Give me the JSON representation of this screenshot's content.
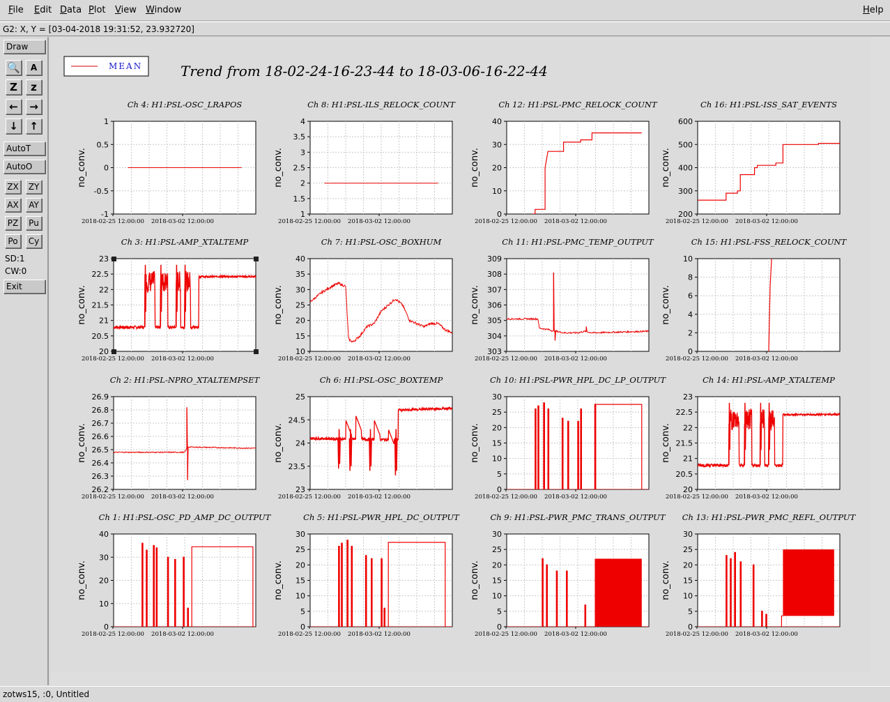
{
  "menu": {
    "items": [
      "File",
      "Edit",
      "Data",
      "Plot",
      "View",
      "Window"
    ],
    "help": "Help"
  },
  "coord_readout": "G2: X, Y = [03-04-2018 19:31:52, 23.932720]",
  "toolbar": {
    "draw": "Draw",
    "autot": "AutoT",
    "autoo": "AutoO",
    "small_buttons": [
      "ZX",
      "ZY",
      "AX",
      "AY",
      "PZ",
      "Pu",
      "Po",
      "Cy"
    ],
    "sd": "SD:1",
    "cw": "CW:0",
    "exit": "Exit",
    "icons": [
      "magnifier-icon",
      "text-tool-icon",
      "zoom-z-icon",
      "zoom-z-small-icon",
      "arrow-left-icon",
      "arrow-right-icon",
      "arrow-down-icon",
      "arrow-up-icon"
    ],
    "icon_glyphs": [
      "🔍",
      "A",
      "Z",
      "z",
      "←",
      "→",
      "↓",
      "↑"
    ]
  },
  "status_bar": "zotws15, :0, Untitled",
  "legend": {
    "label": "MEAN",
    "color": "#d00000"
  },
  "trend_title": "Trend from 18-02-24-16-23-44 to 18-03-06-16-22-44",
  "common": {
    "ylabel": "no_conv.",
    "x_ticks": [
      "2018-02-25 12:00:00",
      "2018-03-02 12:00:00"
    ],
    "line_color": "#ee0000"
  },
  "chart_data": [
    {
      "type": "line",
      "title": "Ch 4: H1:PSL-OSC_LRAPOS",
      "ylim": [
        -1,
        1
      ],
      "yticks": [
        "-1",
        "-0.5",
        "0",
        "0.5",
        "1"
      ],
      "kind": "flat",
      "level": 0,
      "t0": 0.1,
      "t1": 0.9
    },
    {
      "type": "line",
      "title": "Ch 8: H1:PSL-ILS_RELOCK_COUNT",
      "ylim": [
        1,
        4
      ],
      "yticks": [
        "1",
        "1.5",
        "2",
        "2.5",
        "3",
        "3.5",
        "4"
      ],
      "kind": "flat",
      "level": 2,
      "t0": 0.1,
      "t1": 0.9
    },
    {
      "type": "line",
      "title": "Ch 12: H1:PSL-PMC_RELOCK_COUNT",
      "ylim": [
        0,
        40
      ],
      "yticks": [
        "0",
        "10",
        "20",
        "30",
        "40"
      ],
      "kind": "steps",
      "points": [
        [
          0.18,
          0
        ],
        [
          0.2,
          0
        ],
        [
          0.2,
          2
        ],
        [
          0.27,
          2
        ],
        [
          0.27,
          20
        ],
        [
          0.29,
          27
        ],
        [
          0.4,
          27
        ],
        [
          0.4,
          31
        ],
        [
          0.52,
          31
        ],
        [
          0.52,
          32
        ],
        [
          0.6,
          32
        ],
        [
          0.6,
          35
        ],
        [
          0.95,
          35
        ]
      ]
    },
    {
      "type": "line",
      "title": "Ch 16: H1:PSL-ISS_SAT_EVENTS",
      "ylim": [
        200,
        600
      ],
      "yticks": [
        "200",
        "300",
        "400",
        "500",
        "600"
      ],
      "kind": "steps",
      "points": [
        [
          0,
          260
        ],
        [
          0.2,
          260
        ],
        [
          0.2,
          290
        ],
        [
          0.28,
          290
        ],
        [
          0.28,
          300
        ],
        [
          0.3,
          300
        ],
        [
          0.3,
          370
        ],
        [
          0.4,
          370
        ],
        [
          0.4,
          400
        ],
        [
          0.42,
          400
        ],
        [
          0.42,
          410
        ],
        [
          0.55,
          410
        ],
        [
          0.55,
          420
        ],
        [
          0.6,
          420
        ],
        [
          0.6,
          500
        ],
        [
          0.85,
          500
        ],
        [
          0.85,
          505
        ],
        [
          1,
          505
        ]
      ]
    },
    {
      "type": "line",
      "title": "Ch 3: H1:PSL-AMP_XTALTEMP",
      "ylim": [
        20,
        23
      ],
      "yticks": [
        "20",
        "20.5",
        "21",
        "21.5",
        "22",
        "22.5",
        "23"
      ],
      "kind": "pulses",
      "base": 20.78,
      "noise": 0.05,
      "high": 22.5,
      "pulses": [
        [
          0.22,
          0.29
        ],
        [
          0.33,
          0.38
        ],
        [
          0.44,
          0.47
        ],
        [
          0.5,
          0.54
        ]
      ],
      "after": [
        0.6,
        22.42
      ],
      "selected": true
    },
    {
      "type": "line",
      "title": "Ch 7: H1:PSL-OSC_BOXHUM",
      "ylim": [
        10,
        40
      ],
      "yticks": [
        "10",
        "15",
        "20",
        "25",
        "30",
        "35",
        "40"
      ],
      "kind": "curve",
      "noise": 0.4,
      "points": [
        [
          0,
          26
        ],
        [
          0.08,
          29
        ],
        [
          0.15,
          31
        ],
        [
          0.2,
          32
        ],
        [
          0.25,
          31
        ],
        [
          0.27,
          14
        ],
        [
          0.3,
          13
        ],
        [
          0.35,
          15
        ],
        [
          0.4,
          18
        ],
        [
          0.45,
          19
        ],
        [
          0.5,
          23
        ],
        [
          0.55,
          25
        ],
        [
          0.6,
          27
        ],
        [
          0.65,
          25
        ],
        [
          0.7,
          20
        ],
        [
          0.75,
          19
        ],
        [
          0.8,
          18
        ],
        [
          0.85,
          19
        ],
        [
          0.9,
          19
        ],
        [
          0.95,
          17
        ],
        [
          1,
          16
        ]
      ]
    },
    {
      "type": "line",
      "title": "Ch 11: H1:PSL-PMC_TEMP_OUTPUT",
      "ylim": [
        303,
        309
      ],
      "yticks": [
        "303",
        "304",
        "305",
        "306",
        "307",
        "308",
        "309"
      ],
      "kind": "curve",
      "noise": 0.05,
      "points": [
        [
          0,
          305.1
        ],
        [
          0.22,
          305.1
        ],
        [
          0.23,
          304.5
        ],
        [
          0.3,
          304.4
        ],
        [
          0.33,
          304.3
        ],
        [
          0.35,
          304.3
        ],
        [
          0.4,
          304.2
        ],
        [
          0.5,
          304.2
        ],
        [
          0.55,
          304.3
        ],
        [
          0.6,
          304.2
        ],
        [
          1,
          304.3
        ]
      ],
      "spikes": [
        [
          0.33,
          308.1
        ],
        [
          0.34,
          303.7
        ],
        [
          0.56,
          304.6
        ]
      ]
    },
    {
      "type": "line",
      "title": "Ch 15: H1:PSL-FSS_RELOCK_COUNT",
      "ylim": [
        0,
        10
      ],
      "yticks": [
        "0",
        "2",
        "4",
        "6",
        "8",
        "10"
      ],
      "kind": "steps",
      "points": [
        [
          0.5,
          0
        ],
        [
          0.51,
          7
        ],
        [
          0.52,
          10
        ]
      ]
    },
    {
      "type": "line",
      "title": "Ch 2: H1:PSL-NPRO_XTALTEMPSET",
      "ylim": [
        26.2,
        26.9
      ],
      "yticks": [
        "26.2",
        "26.3",
        "26.4",
        "26.5",
        "26.6",
        "26.7",
        "26.8",
        "26.9"
      ],
      "kind": "curve",
      "noise": 0.004,
      "points": [
        [
          0,
          26.48
        ],
        [
          0.5,
          26.48
        ],
        [
          0.52,
          26.52
        ],
        [
          1,
          26.51
        ]
      ],
      "spikes": [
        [
          0.515,
          26.82
        ],
        [
          0.52,
          26.27
        ]
      ]
    },
    {
      "type": "line",
      "title": "Ch 6: H1:PSL-OSC_BOXTEMP",
      "ylim": [
        23,
        25
      ],
      "yticks": [
        "23",
        "23.5",
        "24",
        "24.5",
        "25"
      ],
      "kind": "pulses_low",
      "base": 24.1,
      "noise": 0.03,
      "dips": [
        [
          0.2,
          23.45
        ],
        [
          0.28,
          23.4
        ],
        [
          0.42,
          23.4
        ],
        [
          0.6,
          23.3
        ]
      ],
      "humps": [
        [
          0.25,
          24.5
        ],
        [
          0.32,
          24.6
        ],
        [
          0.45,
          24.5
        ],
        [
          0.55,
          24.3
        ]
      ],
      "after": [
        0.62,
        24.7
      ]
    },
    {
      "type": "line",
      "title": "Ch 10: H1:PSL-PWR_HPL_DC_LP_OUTPUT",
      "ylim": [
        0,
        30
      ],
      "yticks": [
        "0",
        "5",
        "10",
        "15",
        "20",
        "25",
        "30"
      ],
      "kind": "bars",
      "base": 0,
      "bars": [
        [
          0.2,
          26
        ],
        [
          0.22,
          27
        ],
        [
          0.26,
          28
        ],
        [
          0.29,
          26
        ],
        [
          0.39,
          23
        ],
        [
          0.43,
          22
        ],
        [
          0.5,
          22
        ],
        [
          0.52,
          26
        ],
        [
          0.62,
          27.5
        ]
      ],
      "after_block": [
        0.62,
        0.95,
        27.5
      ]
    },
    {
      "type": "line",
      "title": "Ch 14: H1:PSL-AMP_XTALTEMP",
      "ylim": [
        20,
        23
      ],
      "yticks": [
        "20",
        "20.5",
        "21",
        "21.5",
        "22",
        "22.5",
        "23"
      ],
      "kind": "pulses",
      "base": 20.78,
      "noise": 0.05,
      "high": 22.5,
      "pulses": [
        [
          0.22,
          0.29
        ],
        [
          0.33,
          0.38
        ],
        [
          0.44,
          0.47
        ],
        [
          0.5,
          0.54
        ]
      ],
      "after": [
        0.6,
        22.42
      ]
    },
    {
      "type": "line",
      "title": "Ch 1: H1:PSL-OSC_PD_AMP_DC_OUTPUT",
      "ylim": [
        0,
        40
      ],
      "yticks": [
        "0",
        "10",
        "20",
        "30",
        "40"
      ],
      "kind": "bars",
      "base": 0,
      "bars": [
        [
          0.2,
          36
        ],
        [
          0.23,
          33
        ],
        [
          0.28,
          35
        ],
        [
          0.3,
          34
        ],
        [
          0.38,
          30
        ],
        [
          0.43,
          29
        ],
        [
          0.49,
          30
        ],
        [
          0.52,
          8
        ]
      ],
      "after_block": [
        0.55,
        0.98,
        34.5
      ]
    },
    {
      "type": "line",
      "title": "Ch 5: H1:PSL-PWR_HPL_DC_OUTPUT",
      "ylim": [
        0,
        30
      ],
      "yticks": [
        "0",
        "5",
        "10",
        "15",
        "20",
        "25",
        "30"
      ],
      "kind": "bars",
      "base": 0,
      "bars": [
        [
          0.2,
          26
        ],
        [
          0.22,
          27
        ],
        [
          0.26,
          28
        ],
        [
          0.29,
          26
        ],
        [
          0.39,
          23
        ],
        [
          0.43,
          22
        ],
        [
          0.5,
          22
        ],
        [
          0.52,
          6
        ]
      ],
      "after_block": [
        0.55,
        0.95,
        27.3
      ]
    },
    {
      "type": "line",
      "title": "Ch 9: H1:PSL-PWR_PMC_TRANS_OUTPUT",
      "ylim": [
        0,
        30
      ],
      "yticks": [
        "0",
        "5",
        "10",
        "15",
        "20",
        "25",
        "30"
      ],
      "kind": "dense",
      "base": 0,
      "bars": [
        [
          0.25,
          22
        ],
        [
          0.28,
          20
        ],
        [
          0.35,
          18
        ],
        [
          0.42,
          18
        ],
        [
          0.55,
          7
        ]
      ],
      "block": [
        0.62,
        0.95,
        22
      ]
    },
    {
      "type": "line",
      "title": "Ch 13: H1:PSL-PWR_PMC_REFL_OUTPUT",
      "ylim": [
        0,
        30
      ],
      "yticks": [
        "0",
        "5",
        "10",
        "15",
        "20",
        "25",
        "30"
      ],
      "kind": "dense",
      "base": 0,
      "bars": [
        [
          0.2,
          23
        ],
        [
          0.23,
          22
        ],
        [
          0.26,
          24
        ],
        [
          0.3,
          21
        ],
        [
          0.39,
          20
        ],
        [
          0.45,
          5
        ],
        [
          0.48,
          4
        ]
      ],
      "block": [
        0.6,
        0.96,
        25
      ],
      "block_low": 3.5
    }
  ]
}
